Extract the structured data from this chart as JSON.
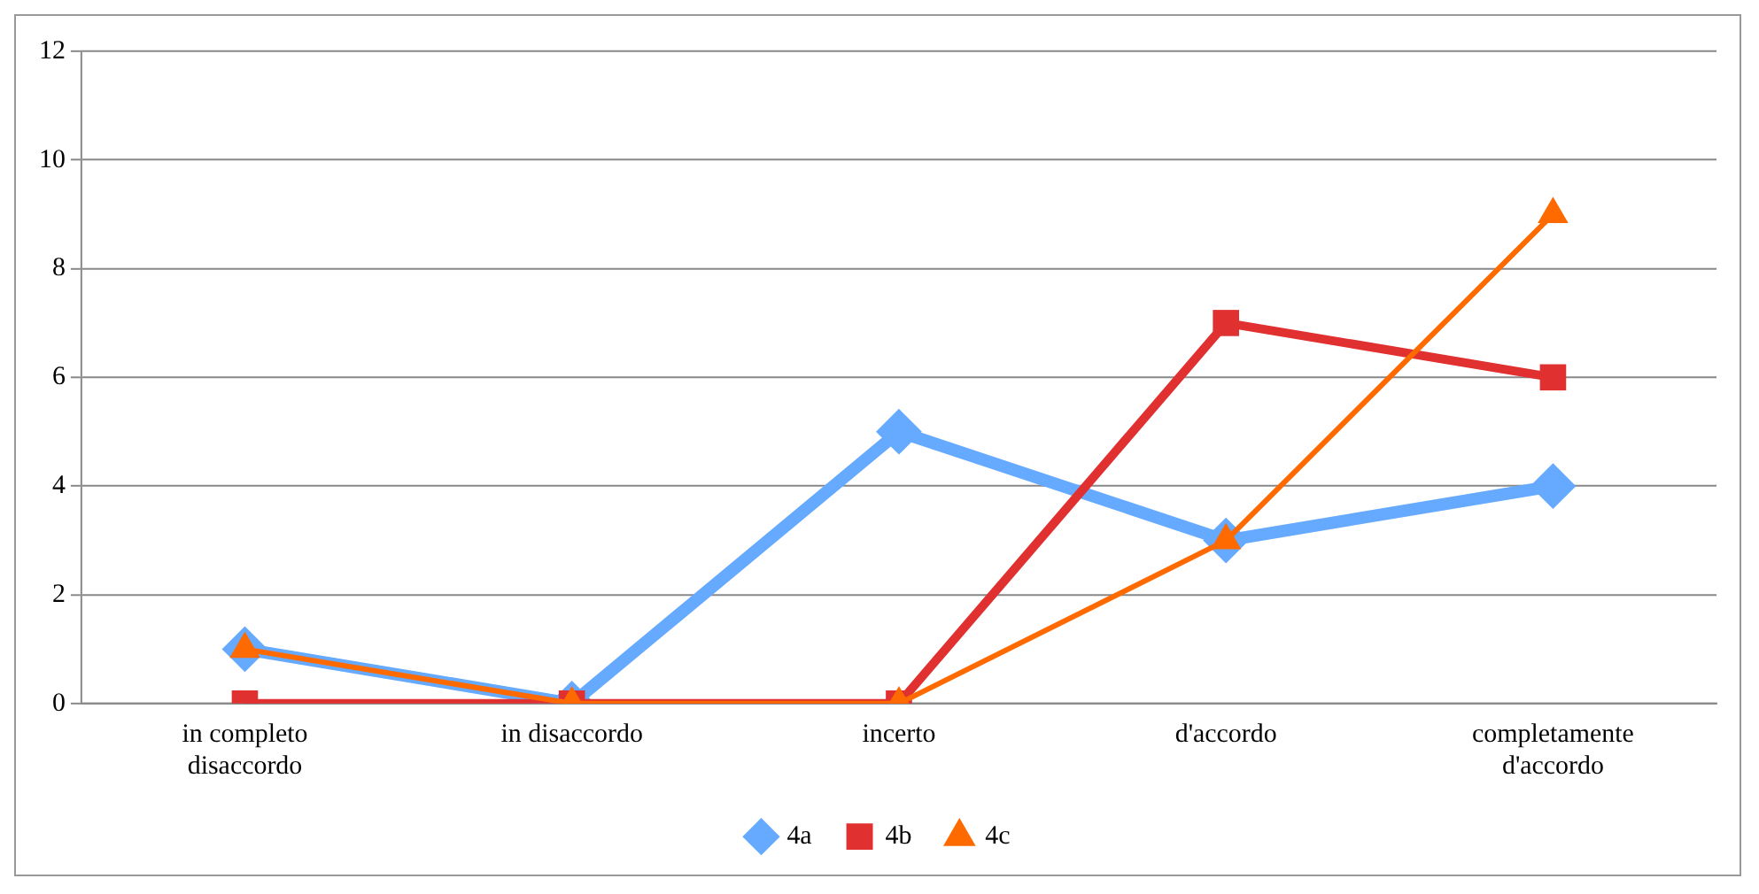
{
  "chart_data": {
    "type": "line",
    "categories": [
      "in completo disaccordo",
      "in disaccordo",
      "incerto",
      "d'accordo",
      "completamente d'accordo"
    ],
    "series": [
      {
        "name": "4a",
        "color": "#66aaff",
        "values": [
          1,
          0,
          5,
          3,
          4
        ],
        "marker": "diamond"
      },
      {
        "name": "4b",
        "color": "#e03030",
        "values": [
          0,
          0,
          0,
          7,
          6
        ],
        "marker": "square"
      },
      {
        "name": "4c",
        "color": "#ff6a00",
        "values": [
          1,
          0,
          0,
          3,
          9
        ],
        "marker": "triangle"
      }
    ],
    "ylim": [
      0,
      12
    ],
    "yticks": [
      0,
      2,
      4,
      6,
      8,
      10,
      12
    ],
    "grid": "y",
    "legend": "bottom",
    "line_style": "solid"
  }
}
